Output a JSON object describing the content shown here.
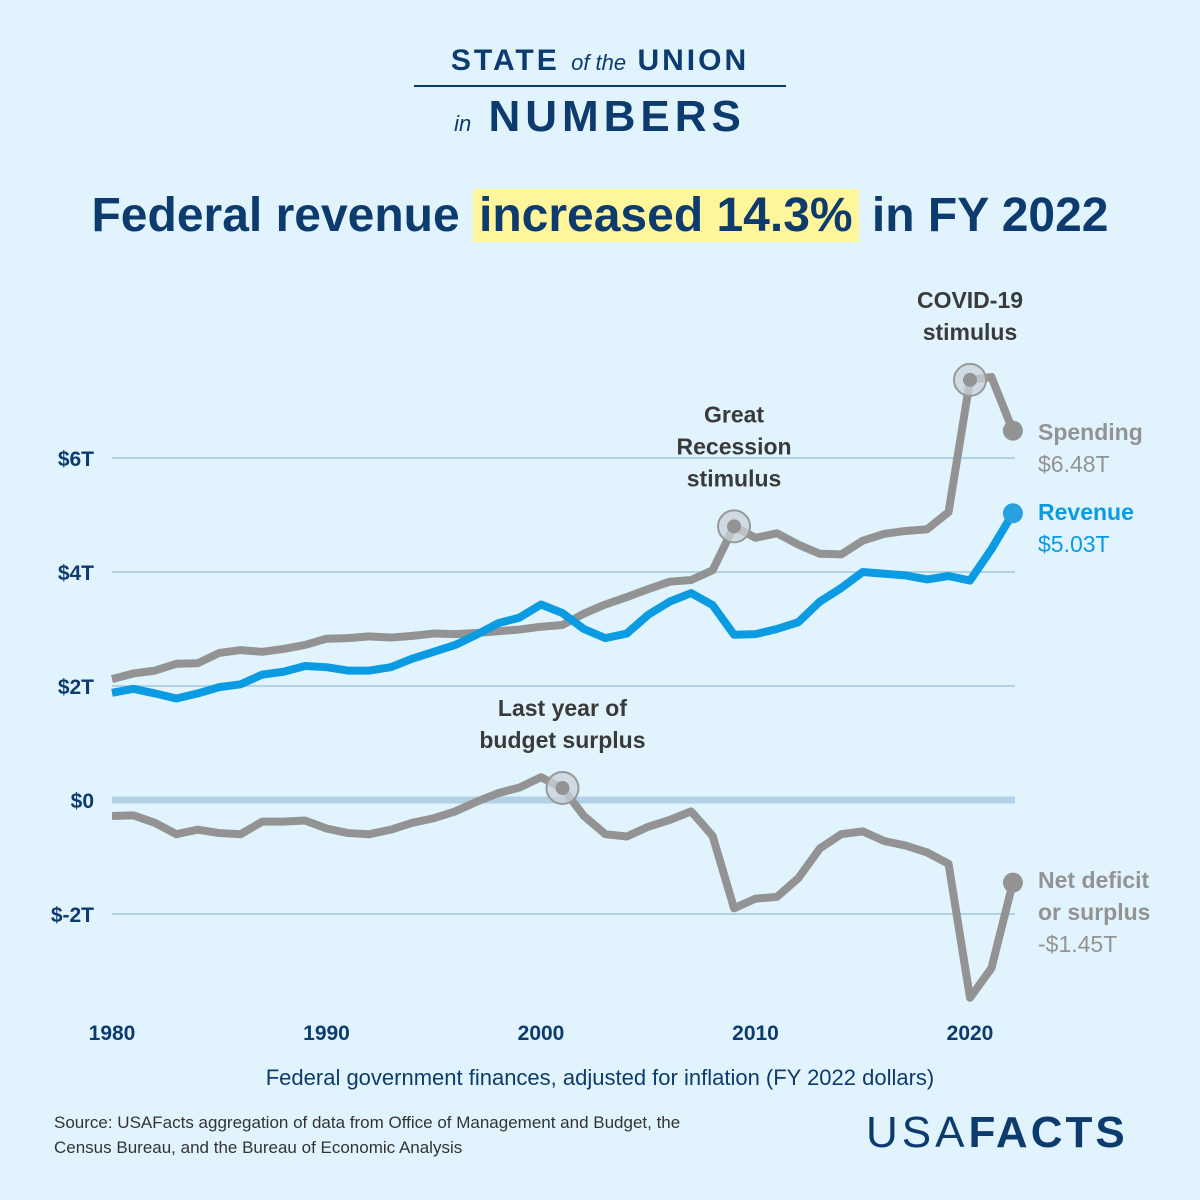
{
  "header": {
    "line1_a": "STATE",
    "line1_b": "of the",
    "line1_c": "UNION",
    "line2_a": "in",
    "line2_b": "NUMBERS"
  },
  "title": {
    "pre": "Federal revenue ",
    "highlight": "increased 14.3%",
    "post": " in FY 2022"
  },
  "source": "Source: USAFacts aggregation of data from Office of Management and Budget, the Census Bureau, and the Bureau of Economic Analysis",
  "logo": {
    "a": "USA",
    "b": "FACTS"
  },
  "colors": {
    "background": "#e1f4fd",
    "navy": "#0d3b6e",
    "revenue": "#0a9be3",
    "gray": "#939393",
    "highlight": "#fff59b"
  },
  "chart_data": {
    "type": "line",
    "xlabel": "Federal government finances, adjusted for inflation (FY 2022 dollars)",
    "ylim": [
      -3.5,
      7.5
    ],
    "xlim": [
      1980,
      2022
    ],
    "grid": true,
    "yticks": [
      {
        "v": 6,
        "label": "$6T"
      },
      {
        "v": 4,
        "label": "$4T"
      },
      {
        "v": 2,
        "label": "$2T"
      },
      {
        "v": 0,
        "label": "$0"
      },
      {
        "v": -2,
        "label": "$-2T"
      }
    ],
    "xticks": [
      {
        "v": 1980,
        "label": "1980"
      },
      {
        "v": 1990,
        "label": "1990"
      },
      {
        "v": 2000,
        "label": "2000"
      },
      {
        "v": 2010,
        "label": "2010"
      },
      {
        "v": 2020,
        "label": "2020"
      }
    ],
    "x_start": 1980,
    "series": [
      {
        "name": "Spending",
        "end_label": "$6.48T",
        "color": "#939393",
        "values": [
          2.12,
          2.22,
          2.27,
          2.39,
          2.4,
          2.58,
          2.63,
          2.6,
          2.65,
          2.72,
          2.83,
          2.84,
          2.87,
          2.85,
          2.88,
          2.92,
          2.91,
          2.93,
          2.96,
          2.99,
          3.04,
          3.07,
          3.27,
          3.43,
          3.56,
          3.7,
          3.83,
          3.86,
          4.03,
          4.8,
          4.6,
          4.68,
          4.48,
          4.32,
          4.31,
          4.55,
          4.67,
          4.72,
          4.75,
          5.05,
          7.37,
          7.42,
          6.48
        ]
      },
      {
        "name": "Revenue",
        "end_label": "$5.03T",
        "color": "#0a9be3",
        "values": [
          1.88,
          1.95,
          1.87,
          1.78,
          1.87,
          1.98,
          2.03,
          2.2,
          2.25,
          2.35,
          2.33,
          2.27,
          2.27,
          2.33,
          2.48,
          2.6,
          2.72,
          2.9,
          3.1,
          3.2,
          3.43,
          3.28,
          3.0,
          2.84,
          2.92,
          3.25,
          3.48,
          3.63,
          3.42,
          2.9,
          2.91,
          3.0,
          3.12,
          3.48,
          3.72,
          4.0,
          3.97,
          3.94,
          3.87,
          3.93,
          3.85,
          4.4,
          5.03
        ]
      },
      {
        "name": "Net deficit or surplus",
        "end_label": "-$1.45T",
        "color": "#939393",
        "values": [
          -0.28,
          -0.27,
          -0.4,
          -0.6,
          -0.52,
          -0.58,
          -0.6,
          -0.38,
          -0.38,
          -0.36,
          -0.5,
          -0.58,
          -0.6,
          -0.52,
          -0.4,
          -0.32,
          -0.2,
          -0.03,
          0.12,
          0.22,
          0.4,
          0.21,
          -0.28,
          -0.6,
          -0.64,
          -0.47,
          -0.35,
          -0.2,
          -0.63,
          -1.9,
          -1.73,
          -1.7,
          -1.37,
          -0.85,
          -0.6,
          -0.55,
          -0.72,
          -0.8,
          -0.92,
          -1.12,
          -3.47,
          -2.95,
          -1.45
        ]
      }
    ],
    "series_labels": {
      "spending": "Spending",
      "revenue": "Revenue",
      "deficit_1": "Net deficit",
      "deficit_2": "or surplus"
    },
    "annotations": [
      {
        "series": 0,
        "year": 2009,
        "lines": [
          "Great",
          "Recession",
          "stimulus"
        ]
      },
      {
        "series": 0,
        "year": 2020,
        "lines": [
          "COVID-19",
          "stimulus"
        ]
      },
      {
        "series": 2,
        "year": 2001,
        "lines": [
          "Last year of",
          "budget surplus"
        ]
      }
    ]
  }
}
